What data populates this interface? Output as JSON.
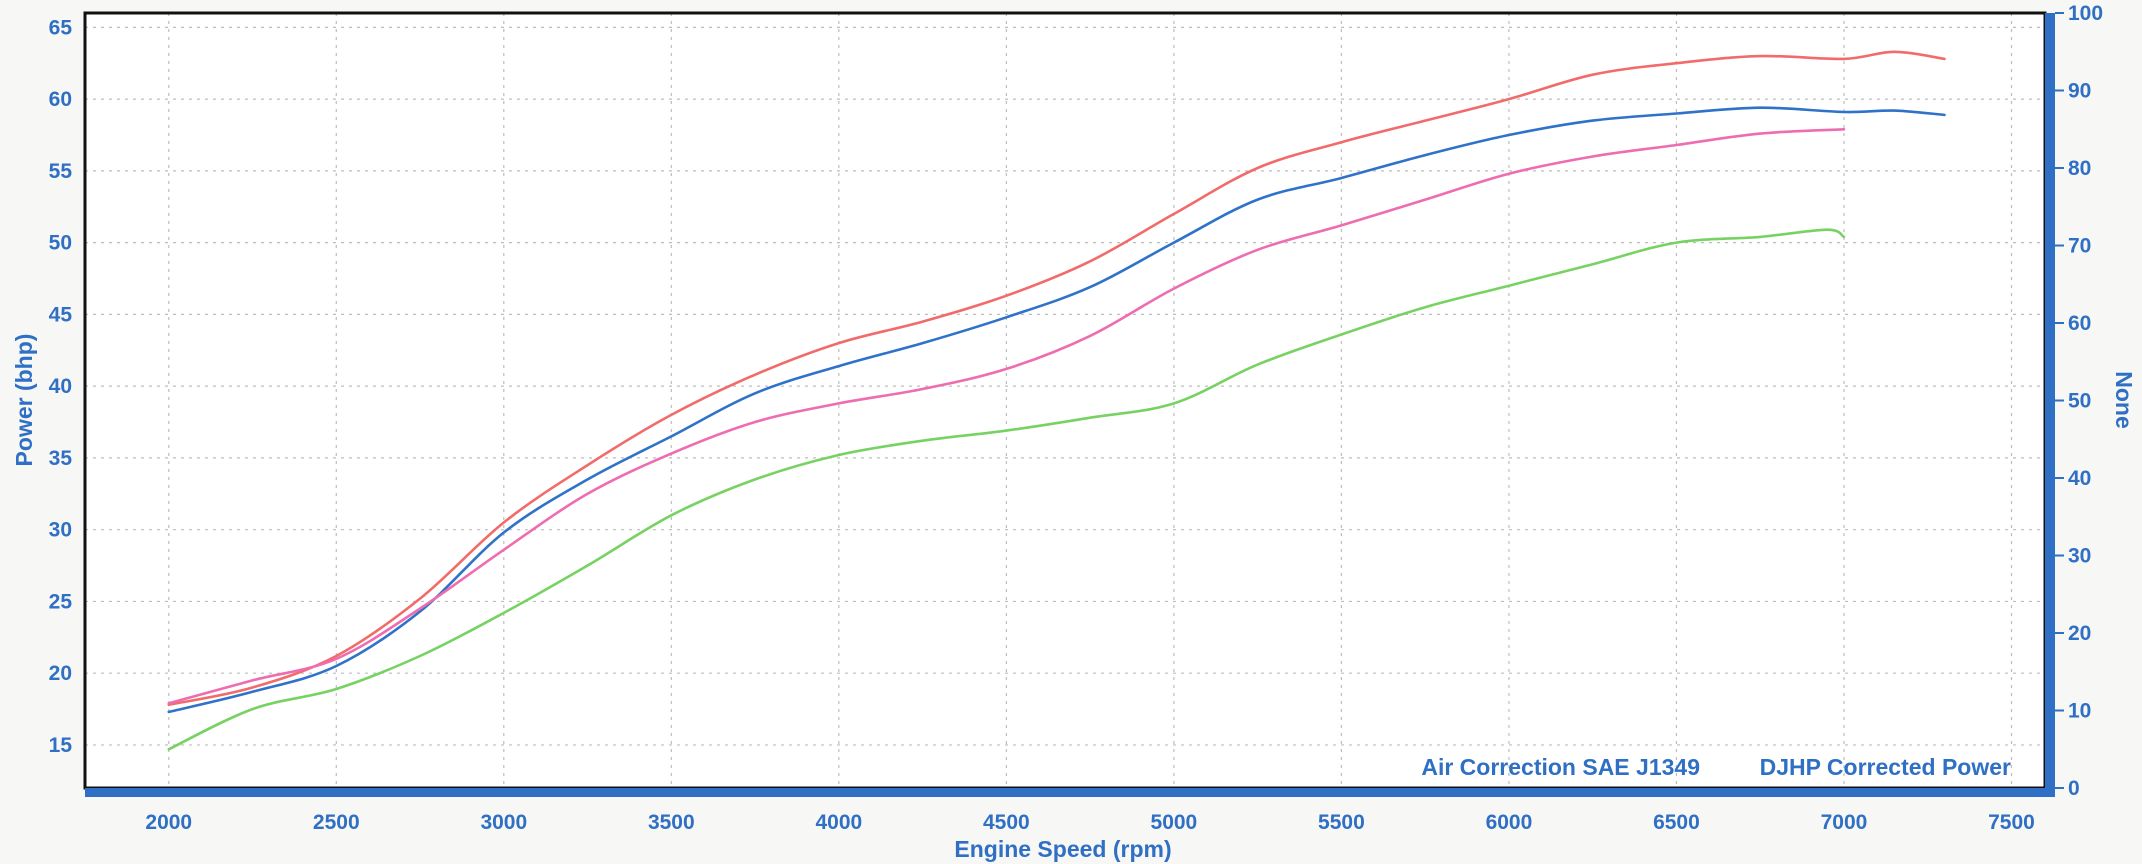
{
  "chart_data": {
    "type": "line",
    "title": "",
    "xlabel": "Engine Speed (rpm)",
    "ylabel": "Power (bhp)",
    "y2label": "None",
    "xlim": [
      1750,
      7600
    ],
    "ylim": [
      12,
      66
    ],
    "y2lim": [
      0,
      100
    ],
    "xticks": [
      2000,
      2500,
      3000,
      3500,
      4000,
      4500,
      5000,
      5500,
      6000,
      6500,
      7000,
      7500
    ],
    "yticks": [
      15,
      20,
      25,
      30,
      35,
      40,
      45,
      50,
      55,
      60,
      65
    ],
    "y2ticks": [
      0,
      10,
      20,
      30,
      40,
      50,
      60,
      70,
      80,
      90,
      100
    ],
    "grid": true,
    "annotations": [
      "Air Correction SAE J1349",
      "DJHP Corrected Power"
    ],
    "series": [
      {
        "color": "#f26b6b",
        "x": [
          2000,
          2250,
          2500,
          2750,
          3000,
          3250,
          3500,
          3750,
          4000,
          4250,
          4500,
          4750,
          5000,
          5250,
          5500,
          5750,
          6000,
          6250,
          6500,
          6750,
          7000,
          7150,
          7300
        ],
        "y": [
          17.8,
          19.0,
          21.2,
          25.2,
          30.5,
          34.5,
          38.0,
          40.8,
          43.0,
          44.5,
          46.3,
          48.7,
          52.0,
          55.2,
          57.0,
          58.5,
          60.0,
          61.7,
          62.5,
          63.0,
          62.8,
          63.3,
          62.8
        ]
      },
      {
        "color": "#2f72c9",
        "x": [
          2000,
          2250,
          2500,
          2750,
          3000,
          3250,
          3500,
          3750,
          4000,
          4250,
          4500,
          4750,
          5000,
          5250,
          5500,
          5750,
          6000,
          6250,
          6500,
          6750,
          7000,
          7150,
          7300
        ],
        "y": [
          17.3,
          18.7,
          20.5,
          24.3,
          29.8,
          33.5,
          36.5,
          39.5,
          41.4,
          43.0,
          44.8,
          46.9,
          50.0,
          53.0,
          54.5,
          56.1,
          57.5,
          58.5,
          59.0,
          59.4,
          59.1,
          59.2,
          58.9
        ]
      },
      {
        "color": "#ee6cb0",
        "x": [
          2000,
          2250,
          2500,
          2750,
          3000,
          3250,
          3500,
          3750,
          4000,
          4250,
          4500,
          4750,
          5000,
          5250,
          5500,
          5750,
          6000,
          6250,
          6500,
          6750,
          7000
        ],
        "y": [
          17.9,
          19.5,
          21.0,
          24.5,
          28.6,
          32.5,
          35.3,
          37.5,
          38.8,
          39.8,
          41.2,
          43.5,
          46.8,
          49.5,
          51.2,
          53.0,
          54.8,
          56.0,
          56.8,
          57.6,
          57.9
        ]
      },
      {
        "color": "#78d263",
        "x": [
          2000,
          2250,
          2500,
          2750,
          3000,
          3250,
          3500,
          3750,
          4000,
          4250,
          4500,
          4750,
          5000,
          5250,
          5500,
          5750,
          6000,
          6250,
          6500,
          6750,
          6950,
          7000
        ],
        "y": [
          14.7,
          17.5,
          18.9,
          21.2,
          24.2,
          27.5,
          31.0,
          33.5,
          35.2,
          36.2,
          36.9,
          37.8,
          38.8,
          41.5,
          43.6,
          45.5,
          47.0,
          48.5,
          50.0,
          50.4,
          50.9,
          50.4
        ]
      }
    ]
  }
}
